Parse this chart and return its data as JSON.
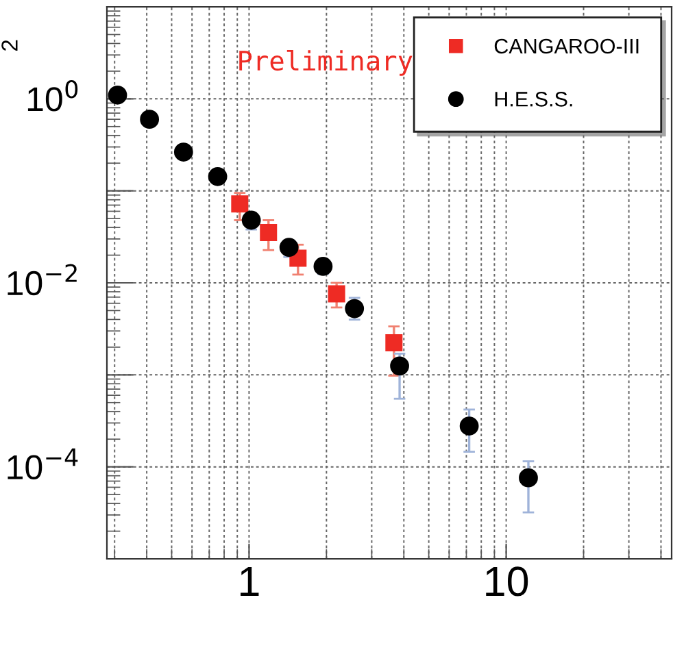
{
  "chart_data": {
    "type": "scatter",
    "ylabel": "2",
    "annotations": [
      "Preliminary"
    ],
    "log": "xy",
    "xlim": [
      0.28,
      44
    ],
    "ylim": [
      1e-05,
      10
    ],
    "xticks": [
      1,
      10
    ],
    "yticks": [
      {
        "value": 1,
        "label": "10$^{0}$"
      },
      {
        "value": 0.1,
        "label": null
      },
      {
        "value": 0.01,
        "label": "10$^{−2}$"
      },
      {
        "value": 0.001,
        "label": null
      },
      {
        "value": 0.0001,
        "label": "10$^{−4}$"
      }
    ],
    "grid": true,
    "legend": "top right",
    "series": [
      {
        "name": "CANGAROO-III",
        "color": "#ee2b24",
        "marker": "square",
        "x": [
          0.92,
          1.19,
          1.55,
          2.19,
          3.66
        ],
        "values": [
          0.072,
          0.0353,
          0.0185,
          0.0076,
          0.00223
        ],
        "errors": [
          [
            0.048,
            0.095
          ],
          [
            0.0227,
            0.048
          ],
          [
            0.0123,
            0.026
          ],
          [
            0.0054,
            0.01
          ],
          [
            0.00098,
            0.00336
          ]
        ]
      },
      {
        "name": "H.E.S.S.",
        "color": "#000000",
        "marker": "circle",
        "x": [
          0.308,
          0.41,
          0.556,
          0.755,
          1.02,
          1.43,
          1.94,
          2.57,
          3.85,
          7.18,
          12.2
        ],
        "values": [
          1.1,
          0.6,
          0.264,
          0.143,
          0.048,
          0.0243,
          0.0151,
          0.00525,
          0.00125,
          0.000278,
          7.6e-05
        ],
        "errors": [
          null,
          null,
          null,
          null,
          [
            0.038,
            0.057
          ],
          [
            0.0191,
            0.0288
          ],
          [
            0.0125,
            0.0172
          ],
          [
            0.00398,
            0.00687
          ],
          [
            0.00055,
            0.0017
          ],
          [
            0.000146,
            0.00042
          ],
          [
            3.2e-05,
            0.000115
          ]
        ]
      }
    ]
  }
}
